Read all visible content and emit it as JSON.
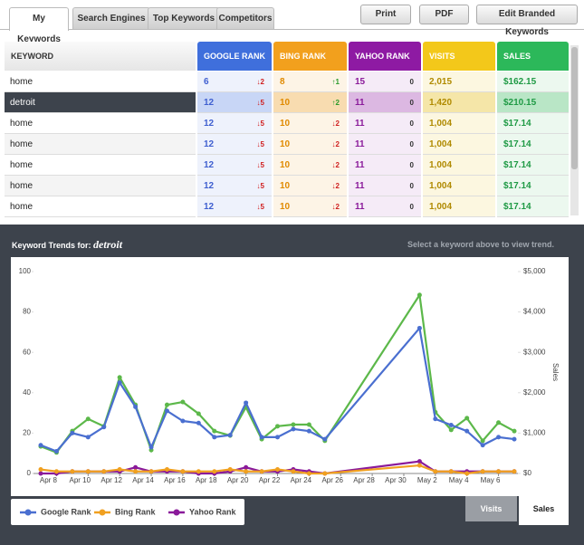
{
  "tabs": [
    "My Keywords",
    "Search Engines",
    "Top Keywords",
    "Competitors"
  ],
  "buttons": [
    "Print",
    "PDF",
    "Edit Branded Keywords"
  ],
  "table": {
    "headers": [
      "KEYWORD",
      "GOOGLE RANK",
      "BING RANK",
      "YAHOO RANK",
      "VISITS",
      "SALES"
    ],
    "selected_row": 1,
    "rows": [
      {
        "keyword": "home",
        "google": 6,
        "google_change": {
          "value": 2,
          "dir": "down"
        },
        "bing": 8,
        "bing_change": {
          "value": 1,
          "dir": "up"
        },
        "yahoo": 15,
        "yahoo_change": 0,
        "visits": "2,015",
        "sales": "$162.15"
      },
      {
        "keyword": "detroit",
        "google": 12,
        "google_change": {
          "value": 5,
          "dir": "down"
        },
        "bing": 10,
        "bing_change": {
          "value": 2,
          "dir": "up"
        },
        "yahoo": 11,
        "yahoo_change": 0,
        "visits": "1,420",
        "sales": "$210.15"
      },
      {
        "keyword": "home",
        "google": 12,
        "google_change": {
          "value": 5,
          "dir": "down"
        },
        "bing": 10,
        "bing_change": {
          "value": 2,
          "dir": "down"
        },
        "yahoo": 11,
        "yahoo_change": 0,
        "visits": "1,004",
        "sales": "$17.14"
      },
      {
        "keyword": "home",
        "google": 12,
        "google_change": {
          "value": 5,
          "dir": "down"
        },
        "bing": 10,
        "bing_change": {
          "value": 2,
          "dir": "down"
        },
        "yahoo": 11,
        "yahoo_change": 0,
        "visits": "1,004",
        "sales": "$17.14"
      },
      {
        "keyword": "home",
        "google": 12,
        "google_change": {
          "value": 5,
          "dir": "down"
        },
        "bing": 10,
        "bing_change": {
          "value": 2,
          "dir": "down"
        },
        "yahoo": 11,
        "yahoo_change": 0,
        "visits": "1,004",
        "sales": "$17.14"
      },
      {
        "keyword": "home",
        "google": 12,
        "google_change": {
          "value": 5,
          "dir": "down"
        },
        "bing": 10,
        "bing_change": {
          "value": 2,
          "dir": "down"
        },
        "yahoo": 11,
        "yahoo_change": 0,
        "visits": "1,004",
        "sales": "$17.14"
      },
      {
        "keyword": "home",
        "google": 12,
        "google_change": {
          "value": 5,
          "dir": "down"
        },
        "bing": 10,
        "bing_change": {
          "value": 2,
          "dir": "down"
        },
        "yahoo": 11,
        "yahoo_change": 0,
        "visits": "1,004",
        "sales": "$17.14"
      }
    ]
  },
  "panel": {
    "title": "Keyword Trends for:",
    "keyword": "detroit",
    "hint": "Select a keyword above to view trend.",
    "toggles": [
      "Visits",
      "Sales"
    ],
    "active_toggle": 1
  },
  "chart_data": {
    "type": "line",
    "x": [
      "Apr 7",
      "Apr 8",
      "Apr 9",
      "Apr 10",
      "Apr 11",
      "Apr 12",
      "Apr 13",
      "Apr 14",
      "Apr 15",
      "Apr 16",
      "Apr 17",
      "Apr 18",
      "Apr 19",
      "Apr 20",
      "Apr 21",
      "Apr 22",
      "Apr 23",
      "Apr 24",
      "Apr 25",
      "May 1",
      "May 2",
      "May 3",
      "May 4",
      "May 5",
      "May 6",
      "May 7"
    ],
    "xlim": [
      "Apr 7",
      "May 7"
    ],
    "xticks": [
      "Apr 8",
      "Apr 10",
      "Apr 12",
      "Apr 14",
      "Apr 16",
      "Apr 18",
      "Apr 20",
      "Apr 22",
      "Apr 24",
      "Apr 26",
      "Apr 28",
      "Apr 30",
      "May 2",
      "May 4",
      "May 6"
    ],
    "ylim": [
      0,
      100
    ],
    "yticks": [
      0,
      20,
      40,
      60,
      80,
      100
    ],
    "y2lim": [
      0,
      5000
    ],
    "y2ticks": [
      {
        "value": 0,
        "label": "$0"
      },
      {
        "value": 1000,
        "label": "$1,000"
      },
      {
        "value": 2000,
        "label": "$2,000"
      },
      {
        "value": 3000,
        "label": "$3,000"
      },
      {
        "value": 4000,
        "label": "$4,000"
      },
      {
        "value": 5000,
        "label": "$5,000"
      }
    ],
    "y2label": "Sales",
    "grid": false,
    "series": [
      {
        "name": "Google Rank",
        "color": "#4a6fd0",
        "values": [
          14,
          11,
          20,
          18,
          23,
          45,
          33,
          13,
          31,
          26,
          25,
          18,
          19,
          35,
          18,
          18,
          22,
          21,
          17,
          72,
          27,
          24,
          21,
          14,
          18,
          17
        ]
      },
      {
        "name": "Bing Rank",
        "color": "#f0a020",
        "values": [
          2,
          1,
          1,
          1,
          1,
          2,
          1,
          1,
          2,
          1,
          1,
          1,
          2,
          1,
          1,
          2,
          1,
          0,
          0,
          4,
          1,
          1,
          0,
          1,
          1,
          1
        ]
      },
      {
        "name": "Yahoo Rank",
        "color": "#8a1a9a",
        "values": [
          0,
          0,
          1,
          1,
          1,
          1,
          3,
          1,
          1,
          1,
          0,
          0,
          1,
          3,
          1,
          1,
          2,
          1,
          0,
          6,
          1,
          1,
          1,
          1,
          1,
          1
        ]
      },
      {
        "name": "Sales",
        "color": "#5cb84a",
        "axis": "y2",
        "legend": false,
        "values": [
          670,
          520,
          1050,
          1350,
          1170,
          2380,
          1700,
          580,
          1700,
          1770,
          1480,
          1050,
          940,
          1640,
          850,
          1170,
          1210,
          1210,
          810,
          4420,
          1520,
          1080,
          1370,
          810,
          1260,
          1050
        ]
      }
    ]
  }
}
